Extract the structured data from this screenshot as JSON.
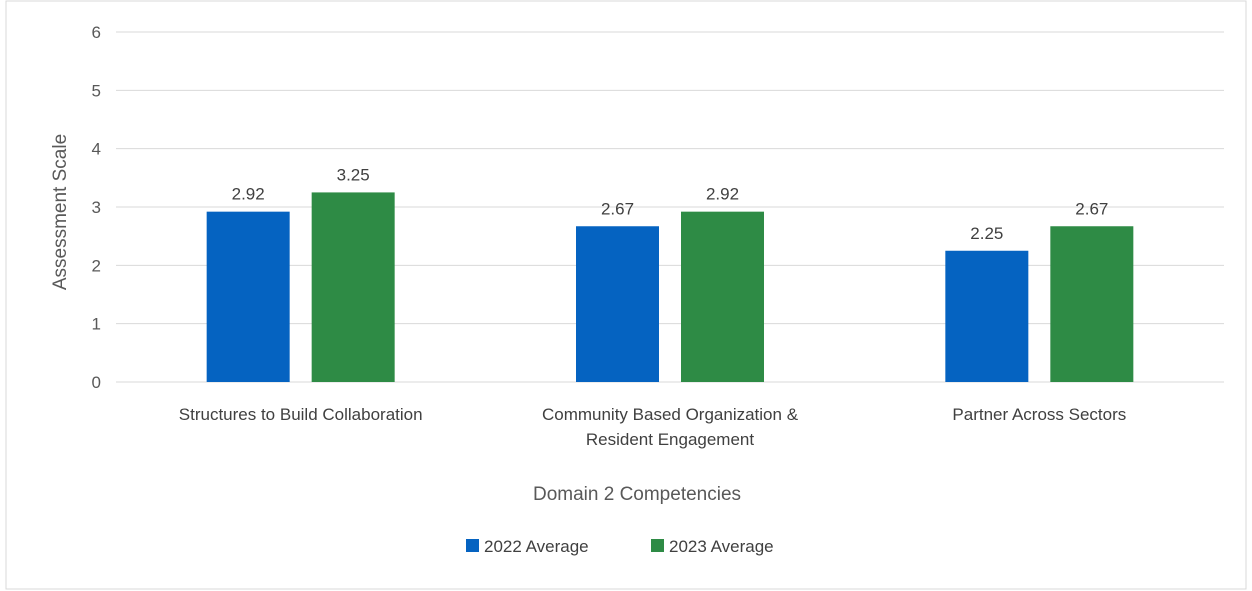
{
  "chart_data": {
    "type": "bar",
    "title": "",
    "xlabel": "Domain 2 Competencies",
    "ylabel": "Assessment Scale",
    "ylim": [
      0,
      6
    ],
    "yticks": [
      0,
      1,
      2,
      3,
      4,
      5,
      6
    ],
    "grid": true,
    "legend_position": "bottom",
    "categories": [
      [
        "Structures to Build Collaboration"
      ],
      [
        "Community Based Organization &",
        "Resident Engagement"
      ],
      [
        "Partner Across Sectors"
      ]
    ],
    "series": [
      {
        "name": "2022 Average",
        "color": "#0563C1",
        "values": [
          2.92,
          2.67,
          2.25
        ],
        "labels": [
          "2.92",
          "2.67",
          "2.25"
        ]
      },
      {
        "name": "2023 Average",
        "color": "#2E8B45",
        "values": [
          3.25,
          2.92,
          2.67
        ],
        "labels": [
          "3.25",
          "2.92",
          "2.67"
        ]
      }
    ]
  },
  "colors": {
    "gridline": "#D9D9D9",
    "border": "#D9D9D9"
  }
}
